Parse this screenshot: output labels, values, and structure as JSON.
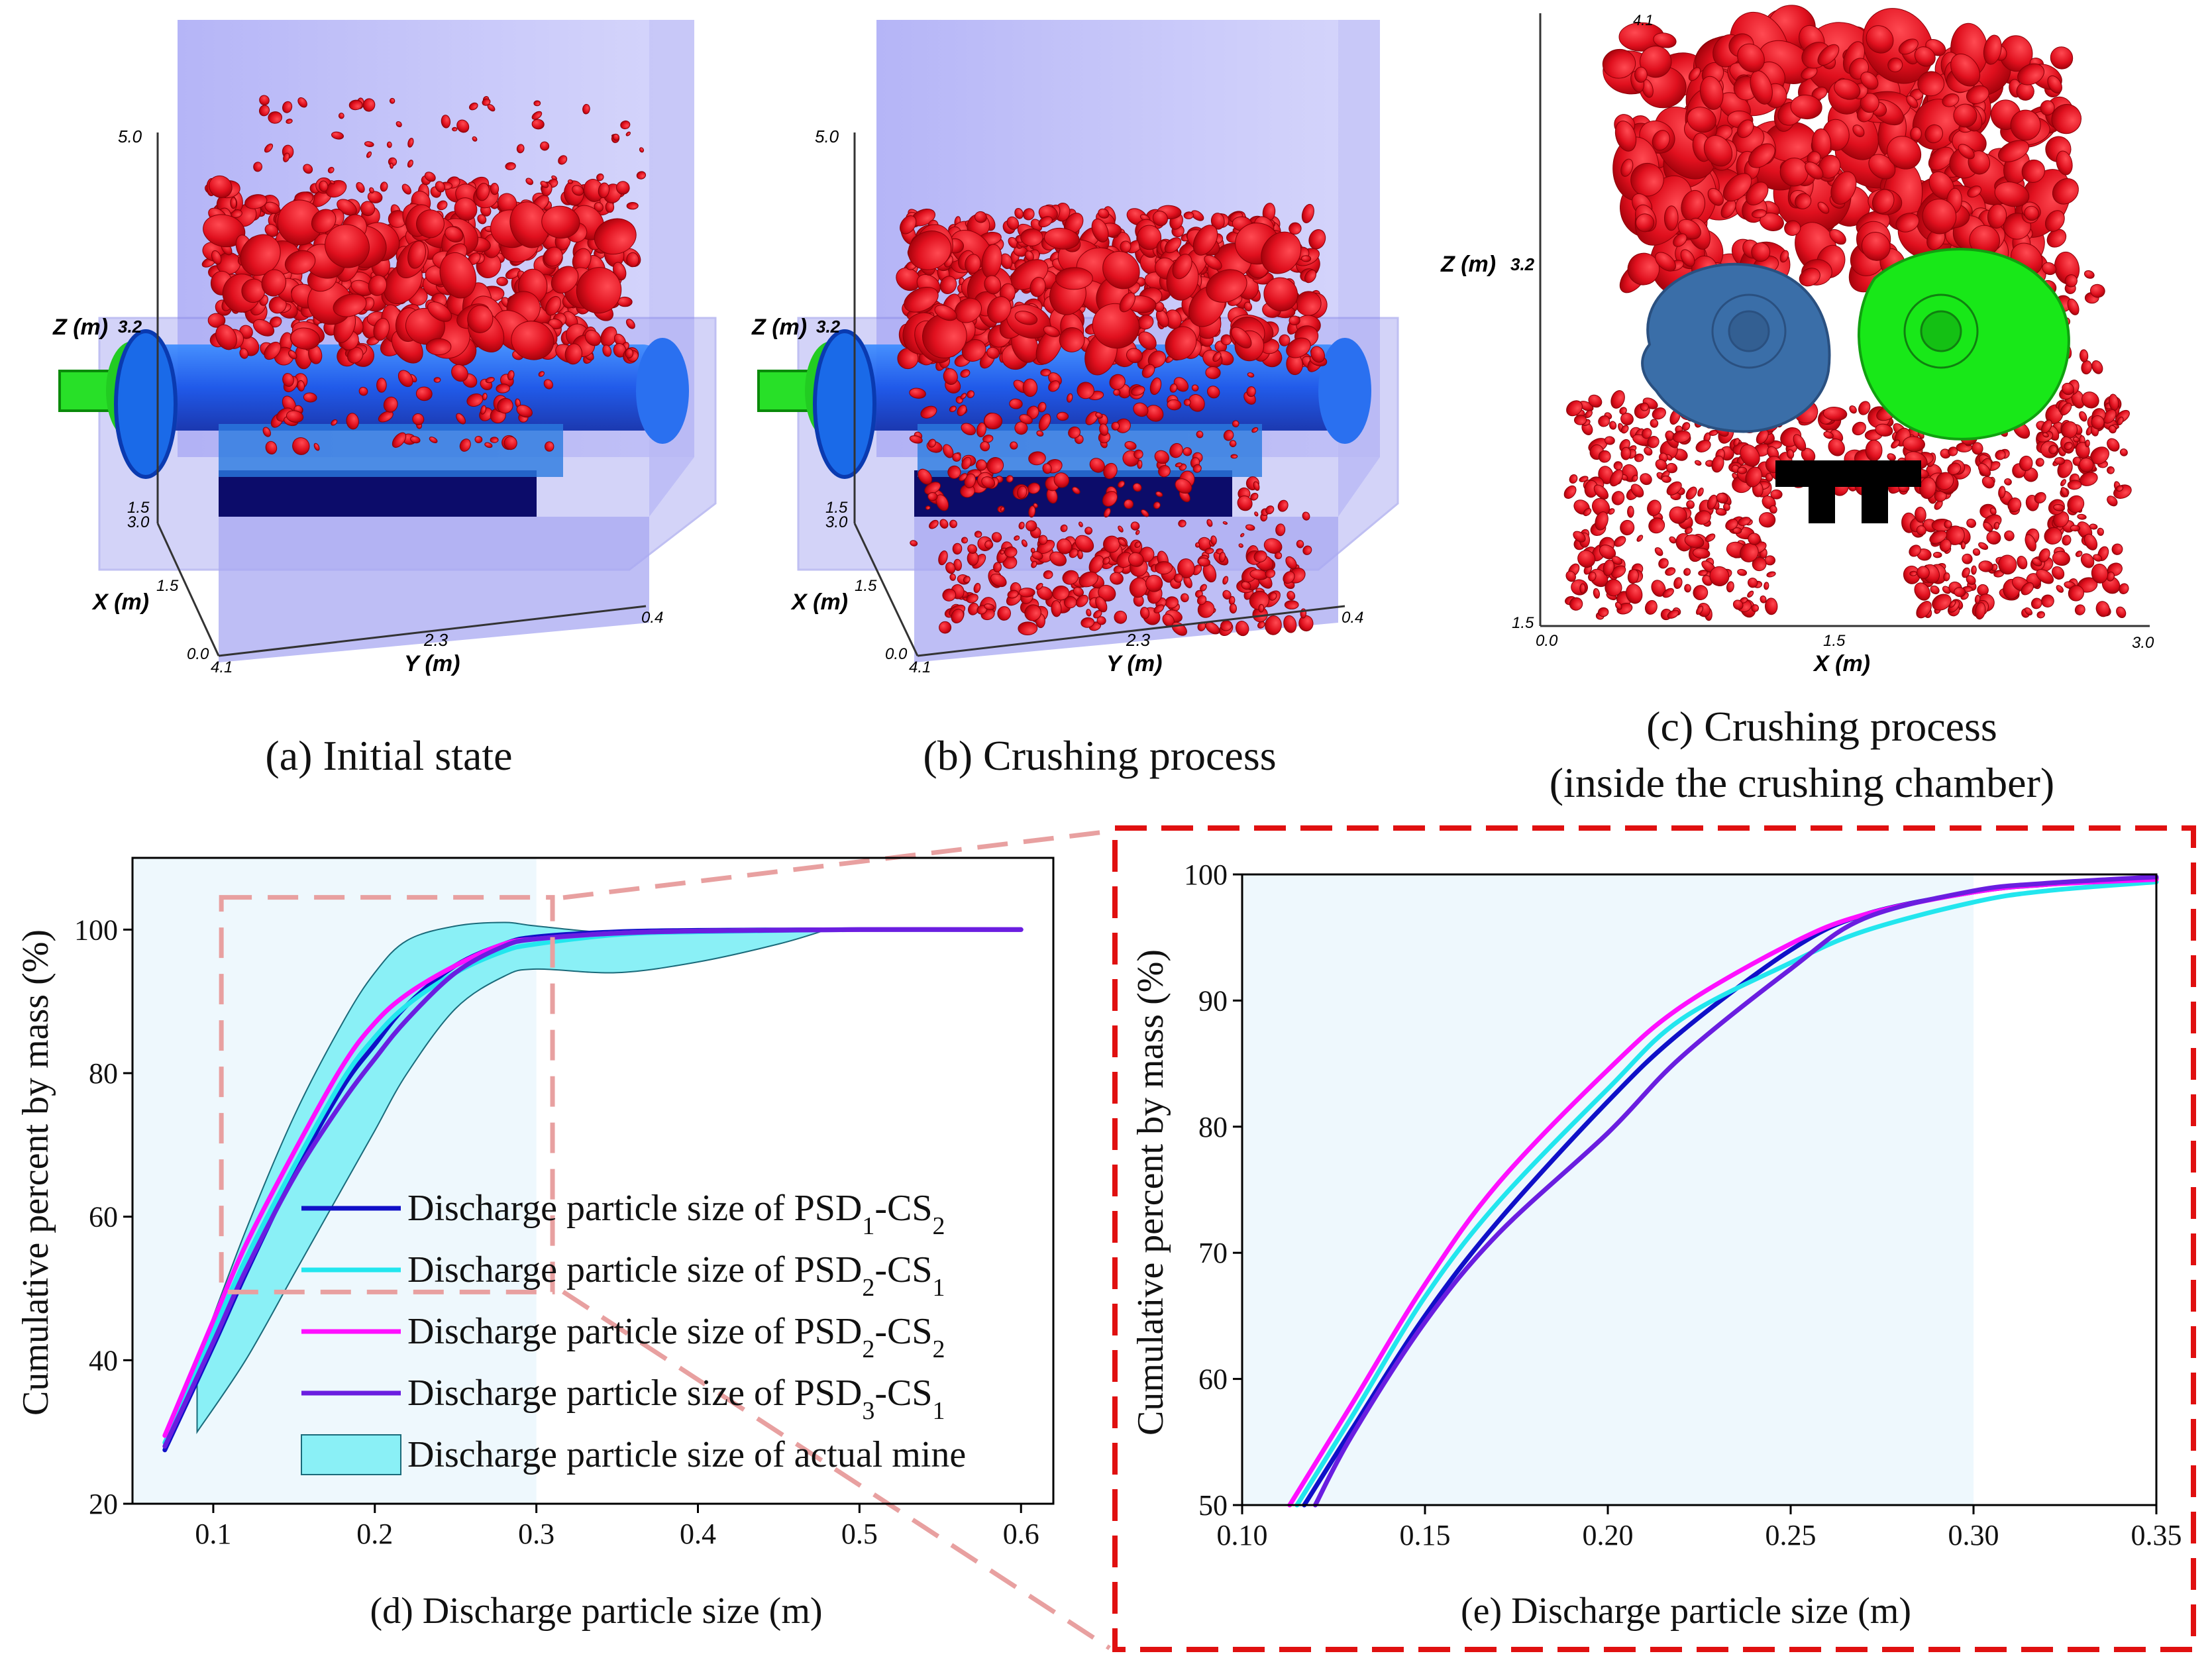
{
  "panels": {
    "a": {
      "caption": "(a) Initial state",
      "axis_z_label": "Z (m)",
      "axis_x_label": "X (m)",
      "axis_y_label": "Y (m)",
      "ticks": [
        "5.0",
        "3.2",
        "1.5",
        "3.0",
        "1.5",
        "0.0",
        "4.1",
        "2.3",
        "0.4"
      ]
    },
    "b": {
      "caption": "(b) Crushing process",
      "axis_z_label": "Z (m)",
      "axis_x_label": "X (m)",
      "axis_y_label": "Y (m)",
      "ticks": [
        "5.0",
        "3.2",
        "1.5",
        "3.0",
        "1.5",
        "0.0",
        "4.1",
        "2.3",
        "0.4"
      ]
    },
    "c": {
      "caption_line1": "(c) Crushing process",
      "caption_line2": "(inside the crushing chamber)",
      "axis_z_label": "Z (m)",
      "axis_x_label": "X (m)",
      "ticks": [
        "4.1",
        "3.2",
        "1.5",
        "0.0",
        "1.5",
        "3.0"
      ]
    }
  },
  "colors": {
    "psd1_cs2": "#1010c8",
    "psd2_cs1": "#22e6ee",
    "psd2_cs2": "#ff10ff",
    "psd3_cs1": "#6a1ee0",
    "band_fill": "#8af0f6",
    "region_fill": "#eef8fd",
    "zoom_box": "#e8a0a0",
    "frame_red": "#e01010",
    "particles": "#e0101e",
    "housing": "#8080f0",
    "roller_blue": "#1060f0",
    "roller_teal": "#3a6ea0",
    "roller_green": "#10e010"
  },
  "legend_parts": [
    {
      "pre": "Discharge particle size of PSD",
      "s1": "1",
      "mid": "-CS",
      "s2": "2"
    },
    {
      "pre": "Discharge particle size of PSD",
      "s1": "2",
      "mid": "-CS",
      "s2": "1"
    },
    {
      "pre": "Discharge particle size of PSD",
      "s1": "2",
      "mid": "-CS",
      "s2": "2"
    },
    {
      "pre": "Discharge particle size of PSD",
      "s1": "3",
      "mid": "-CS",
      "s2": "1"
    }
  ],
  "chart_data": [
    {
      "type": "line",
      "id": "d",
      "title": "",
      "xlabel": "(d) Discharge particle size (m)",
      "ylabel": "Cumulative percent by mass (%)",
      "xlim": [
        0.05,
        0.62
      ],
      "ylim": [
        20,
        110
      ],
      "xticks": [
        "0.1",
        "0.2",
        "0.3",
        "0.4",
        "0.5",
        "0.6"
      ],
      "yticks": [
        "20",
        "40",
        "60",
        "80",
        "100"
      ],
      "shaded_region_x": [
        0.05,
        0.3
      ],
      "zoom_box": {
        "x": [
          0.105,
          0.31
        ],
        "y": [
          49.5,
          104.5
        ]
      },
      "series": [
        {
          "name": "Discharge particle size of PSD1-CS2",
          "color_key": "psd1_cs2",
          "x": [
            0.07,
            0.1,
            0.12,
            0.15,
            0.18,
            0.2,
            0.22,
            0.25,
            0.28,
            0.3,
            0.35,
            0.4,
            0.5,
            0.6
          ],
          "y": [
            27.5,
            42,
            52,
            66,
            78,
            84,
            89.5,
            95,
            98,
            99,
            99.7,
            99.9,
            100,
            100
          ]
        },
        {
          "name": "Discharge particle size of PSD2-CS1",
          "color_key": "psd2_cs1",
          "x": [
            0.07,
            0.1,
            0.12,
            0.15,
            0.18,
            0.2,
            0.22,
            0.25,
            0.28,
            0.3,
            0.35,
            0.4,
            0.5,
            0.6
          ],
          "y": [
            28.5,
            44,
            54,
            67,
            79,
            85,
            89.5,
            94,
            97,
            98,
            99.3,
            99.7,
            100,
            100
          ]
        },
        {
          "name": "Discharge particle size of PSD2-CS2",
          "color_key": "psd2_cs2",
          "x": [
            0.07,
            0.1,
            0.12,
            0.15,
            0.18,
            0.2,
            0.22,
            0.25,
            0.28,
            0.3,
            0.35,
            0.4,
            0.5,
            0.6
          ],
          "y": [
            29.5,
            45.5,
            56,
            69,
            81,
            87,
            91,
            95,
            98,
            98.7,
            99.5,
            99.8,
            100,
            100
          ]
        },
        {
          "name": "Discharge particle size of PSD3-CS1",
          "color_key": "psd3_cs1",
          "x": [
            0.07,
            0.1,
            0.12,
            0.15,
            0.18,
            0.2,
            0.22,
            0.25,
            0.28,
            0.3,
            0.35,
            0.4,
            0.5,
            0.6
          ],
          "y": [
            28,
            42.5,
            52.5,
            65.5,
            76,
            82,
            87.5,
            94,
            97.7,
            98.7,
            99.5,
            99.8,
            100,
            100
          ]
        }
      ],
      "band": {
        "name": "Discharge particle size of actual mine",
        "x": [
          0.09,
          0.12,
          0.15,
          0.18,
          0.2,
          0.22,
          0.25,
          0.28,
          0.3,
          0.35,
          0.4,
          0.45,
          0.48
        ],
        "upper": [
          40,
          58,
          74,
          87,
          94,
          98.5,
          100.5,
          101,
          100.5,
          99.5,
          99.8,
          100,
          100
        ],
        "lower": [
          30,
          40,
          52,
          64,
          72,
          80,
          89,
          93.5,
          94.5,
          94,
          95.5,
          98,
          100
        ]
      }
    },
    {
      "type": "line",
      "id": "e",
      "title": "",
      "xlabel": "(e) Discharge particle size (m)",
      "ylabel": "Cumulative percent by mass (%)",
      "xlim": [
        0.1,
        0.35
      ],
      "ylim": [
        50,
        100
      ],
      "xticks": [
        "0.10",
        "0.15",
        "0.20",
        "0.25",
        "0.30",
        "0.35"
      ],
      "yticks": [
        "50",
        "60",
        "70",
        "80",
        "90",
        "100"
      ],
      "shaded_region_x": [
        0.1,
        0.3
      ],
      "series": [
        {
          "name": "Discharge particle size of PSD1-CS2",
          "color_key": "psd1_cs2",
          "x": [
            0.117,
            0.13,
            0.15,
            0.17,
            0.2,
            0.22,
            0.25,
            0.27,
            0.3,
            0.32,
            0.35
          ],
          "y": [
            50,
            56,
            65,
            72.5,
            82,
            87.5,
            94,
            96.8,
            98.6,
            99.2,
            99.7
          ]
        },
        {
          "name": "Discharge particle size of PSD2-CS1",
          "color_key": "psd2_cs1",
          "x": [
            0.115,
            0.13,
            0.15,
            0.17,
            0.2,
            0.22,
            0.25,
            0.27,
            0.3,
            0.32,
            0.35
          ],
          "y": [
            50,
            57,
            66.5,
            74,
            83,
            88.5,
            93,
            95.5,
            97.8,
            98.7,
            99.4
          ]
        },
        {
          "name": "Discharge particle size of PSD2-CS2",
          "color_key": "psd2_cs2",
          "x": [
            0.113,
            0.13,
            0.15,
            0.17,
            0.2,
            0.22,
            0.25,
            0.27,
            0.3,
            0.32,
            0.35
          ],
          "y": [
            50,
            58,
            67.5,
            75.5,
            84.5,
            89.5,
            94.5,
            96.8,
            98.6,
            99.2,
            99.6
          ]
        },
        {
          "name": "Discharge particle size of PSD3-CS1",
          "color_key": "psd3_cs1",
          "x": [
            0.12,
            0.13,
            0.15,
            0.17,
            0.2,
            0.22,
            0.25,
            0.27,
            0.3,
            0.32,
            0.35
          ],
          "y": [
            50,
            55.5,
            64.5,
            71.5,
            79.5,
            85.5,
            92.5,
            96.5,
            98.7,
            99.3,
            99.8
          ]
        }
      ]
    }
  ]
}
